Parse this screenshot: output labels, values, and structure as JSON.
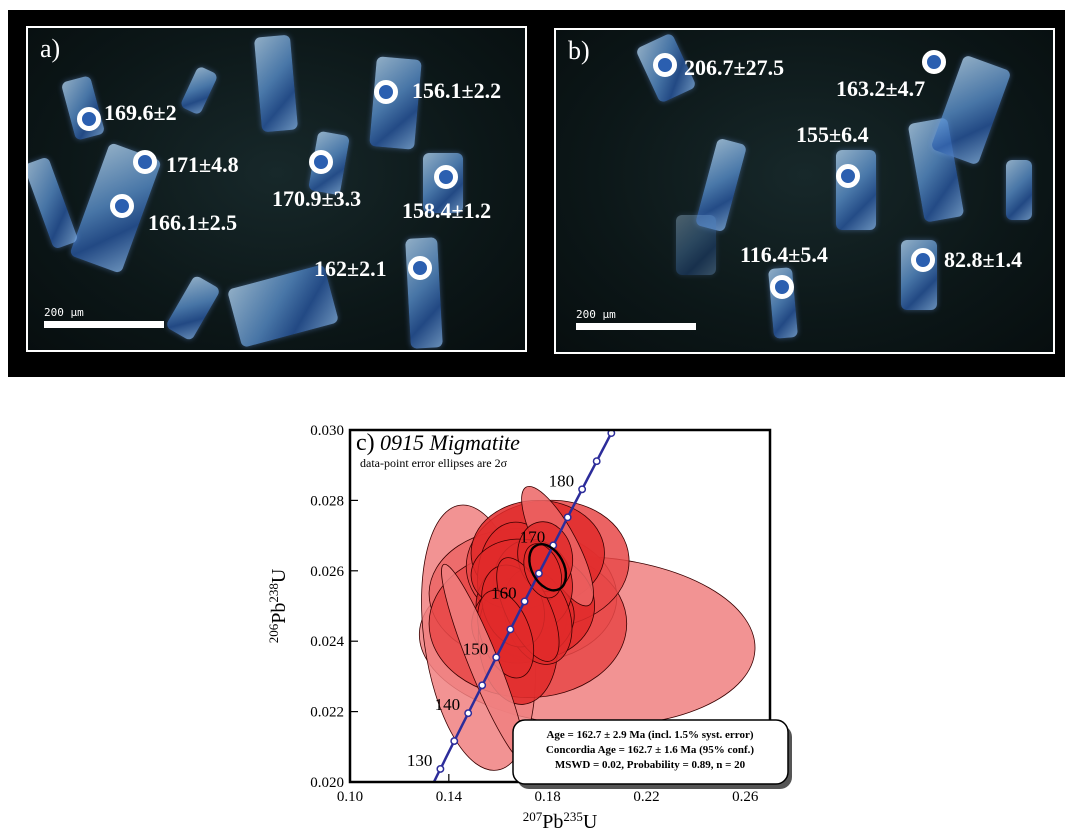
{
  "panel_a": {
    "label": "a)",
    "scale_bar": "200 µm",
    "ages": [
      {
        "text": "169.6±2"
      },
      {
        "text": "171±4.8"
      },
      {
        "text": "166.1±2.5"
      },
      {
        "text": "170.9±3.3"
      },
      {
        "text": "156.1±2.2"
      },
      {
        "text": "158.4±1.2"
      },
      {
        "text": "162±2.1"
      }
    ]
  },
  "panel_b": {
    "label": "b)",
    "scale_bar": "200 µm",
    "ages": [
      {
        "text": "206.7±27.5"
      },
      {
        "text": "163.2±4.7"
      },
      {
        "text": "155±6.4"
      },
      {
        "text": "116.4±5.4"
      },
      {
        "text": "82.8±1.4"
      }
    ]
  },
  "chart_data": {
    "type": "scatter",
    "title": "c) 0915 Migmatite",
    "panel_letter": "c)",
    "sample_name": "0915 Migmatite",
    "subtitle": "data-point error ellipses are 2σ",
    "xlabel_base": "Pb",
    "xlabel_sup1": "207",
    "xlabel_sup2": "235",
    "xlabel_tail": "U",
    "ylabel_base": "Pb",
    "ylabel_sup1": "206",
    "ylabel_sup2": "238",
    "ylabel_tail": "U",
    "xlim": [
      0.1,
      0.27
    ],
    "ylim": [
      0.02,
      0.03
    ],
    "x_ticks": [
      "0.10",
      "0.14",
      "0.18",
      "0.22",
      "0.26"
    ],
    "y_ticks": [
      "0.020",
      "0.022",
      "0.024",
      "0.026",
      "0.028",
      "0.030"
    ],
    "concordia_labels": [
      "130",
      "140",
      "150",
      "160",
      "170",
      "180"
    ],
    "concordia_age_marks": [
      130,
      135,
      140,
      145,
      150,
      155,
      160,
      165,
      170,
      175,
      180,
      185,
      190
    ],
    "ellipses": [
      {
        "cx": 0.196,
        "cy": 0.024,
        "rx": 0.068,
        "ry": 0.0024,
        "rot": -3,
        "color": "#f08080"
      },
      {
        "cx": 0.152,
        "cy": 0.0241,
        "rx": 0.022,
        "ry": 0.0038,
        "rot": 8,
        "color": "#f08080"
      },
      {
        "cx": 0.17,
        "cy": 0.0253,
        "rx": 0.038,
        "ry": 0.0019,
        "rot": -2,
        "color": "#ec6565"
      },
      {
        "cx": 0.172,
        "cy": 0.0245,
        "rx": 0.04,
        "ry": 0.0021,
        "rot": 0,
        "color": "#e84848"
      },
      {
        "cx": 0.18,
        "cy": 0.0262,
        "rx": 0.033,
        "ry": 0.0018,
        "rot": 5,
        "color": "#e84848"
      },
      {
        "cx": 0.176,
        "cy": 0.0265,
        "rx": 0.027,
        "ry": 0.0015,
        "rot": 0,
        "color": "#e02a2a"
      },
      {
        "cx": 0.17,
        "cy": 0.0254,
        "rx": 0.018,
        "ry": 0.002,
        "rot": 10,
        "color": "#e02a2a"
      },
      {
        "cx": 0.175,
        "cy": 0.025,
        "rx": 0.024,
        "ry": 0.0015,
        "rot": 0,
        "color": "#e02a2a"
      },
      {
        "cx": 0.17,
        "cy": 0.0246,
        "rx": 0.021,
        "ry": 0.0012,
        "rot": 15,
        "color": "#e02a2a"
      },
      {
        "cx": 0.184,
        "cy": 0.0267,
        "rx": 0.008,
        "ry": 0.0019,
        "rot": 28,
        "color": "#ec6565"
      },
      {
        "cx": 0.174,
        "cy": 0.0256,
        "rx": 0.016,
        "ry": 0.0013,
        "rot": 8,
        "color": "#e02a2a"
      },
      {
        "cx": 0.168,
        "cy": 0.024,
        "rx": 0.016,
        "ry": 0.0018,
        "rot": 5,
        "color": "#e02a2a"
      },
      {
        "cx": 0.168,
        "cy": 0.0259,
        "rx": 0.019,
        "ry": 0.001,
        "rot": 2,
        "color": "#e02a2a"
      },
      {
        "cx": 0.176,
        "cy": 0.0247,
        "rx": 0.013,
        "ry": 0.0014,
        "rot": 18,
        "color": "#e02a2a"
      },
      {
        "cx": 0.166,
        "cy": 0.025,
        "rx": 0.012,
        "ry": 0.0012,
        "rot": 20,
        "color": "#e02a2a"
      },
      {
        "cx": 0.179,
        "cy": 0.0264,
        "rx": 0.011,
        "ry": 0.001,
        "rot": 10,
        "color": "#e02a2a"
      },
      {
        "cx": 0.172,
        "cy": 0.0249,
        "rx": 0.009,
        "ry": 0.0016,
        "rot": 25,
        "color": "#e02a2a"
      },
      {
        "cx": 0.163,
        "cy": 0.0242,
        "rx": 0.01,
        "ry": 0.0013,
        "rot": 20,
        "color": "#e02a2a"
      },
      {
        "cx": 0.154,
        "cy": 0.0234,
        "rx": 0.006,
        "ry": 0.003,
        "rot": 22,
        "color": "#f08080"
      },
      {
        "cx": 0.178,
        "cy": 0.026,
        "rx": 0.007,
        "ry": 0.0008,
        "rot": 20,
        "color": "#e02a2a"
      }
    ],
    "concordia_ellipse": {
      "cx": 0.18,
      "cy": 0.0261,
      "rx": 0.0065,
      "ry": 0.0007,
      "rot": 28
    },
    "stats_lines": [
      "Age  = 162.7 ± 2.9 Ma (incl. 1.5% syst. error)",
      "Concordia Age = 162.7 ± 1.6 Ma (95% conf.)",
      "MSWD = 0.02, Probability = 0.89, n = 20"
    ],
    "legend_position": "bottom-right",
    "colors": {
      "concordia": "#2c2c9a",
      "frame": "#000000"
    }
  }
}
